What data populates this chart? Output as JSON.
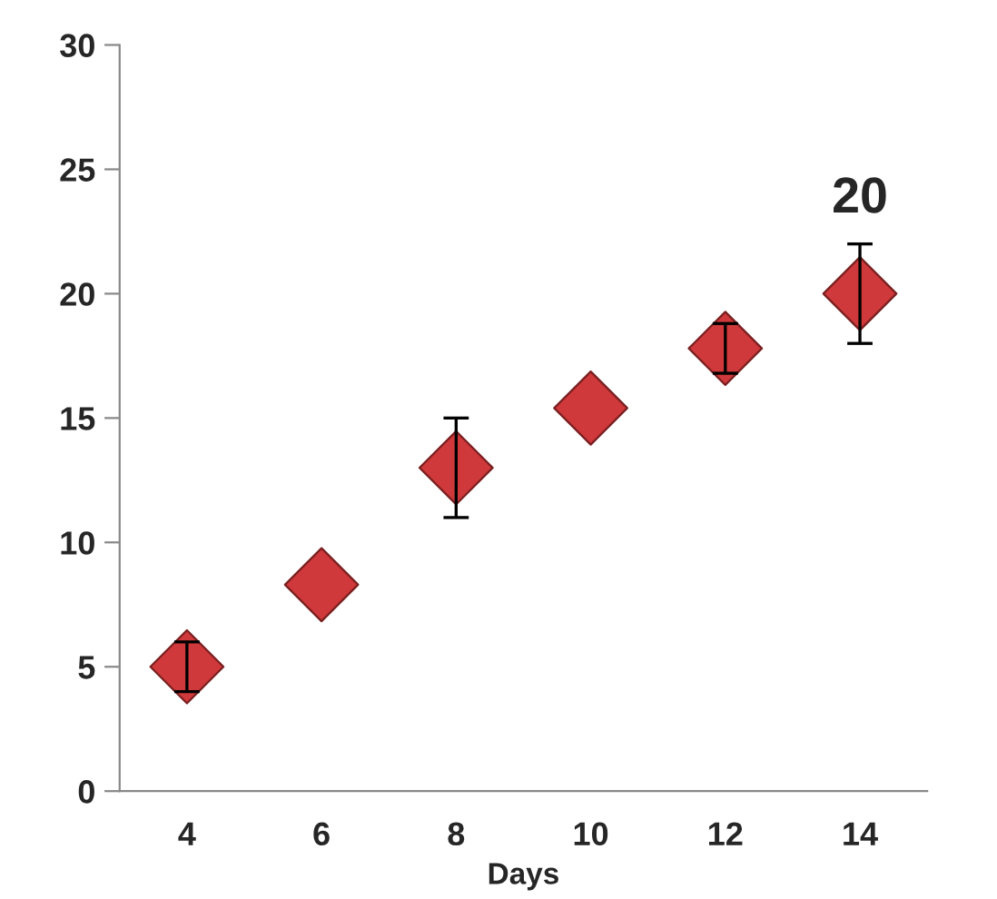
{
  "chart_data": {
    "type": "scatter",
    "xlabel": "Days",
    "categories": [
      "4",
      "6",
      "8",
      "10",
      "12",
      "14"
    ],
    "series": [
      {
        "color": "#d0393b",
        "values": [
          5,
          8.3,
          13,
          15.4,
          17.8,
          20
        ],
        "errors": [
          1,
          null,
          2,
          null,
          1,
          2
        ]
      }
    ],
    "ylim": [
      0,
      30
    ],
    "yticks": [
      0,
      5,
      10,
      15,
      20,
      25,
      30
    ],
    "marker": "diamond",
    "grid": false,
    "legend": false,
    "annotations": [
      {
        "text": "20",
        "x": "14",
        "y": 20
      }
    ]
  }
}
